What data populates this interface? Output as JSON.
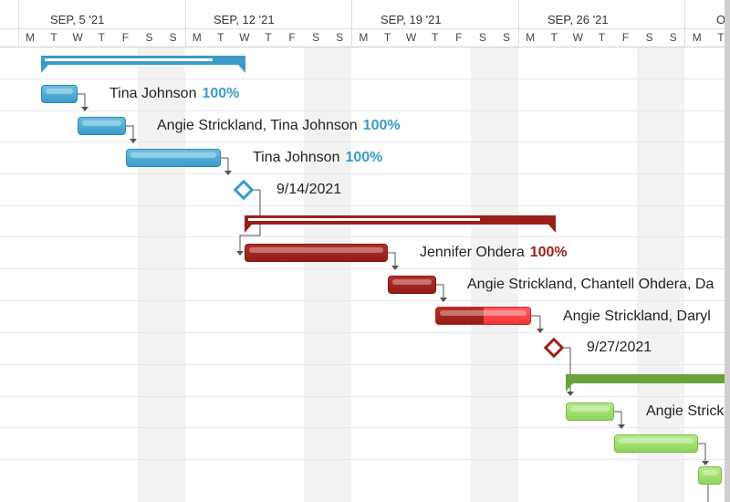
{
  "timeline": {
    "weeks": [
      "SEP, 5 '21",
      "SEP, 12 '21",
      "SEP, 19 '21",
      "SEP, 26 '21",
      "O"
    ],
    "days": [
      "M",
      "T",
      "W",
      "T",
      "F",
      "S",
      "S",
      "M",
      "T",
      "W",
      "T",
      "F",
      "S",
      "S",
      "M",
      "T",
      "W",
      "T",
      "F",
      "S",
      "S",
      "M",
      "T",
      "W",
      "T",
      "F",
      "S",
      "S",
      "M",
      "T"
    ]
  },
  "colors": {
    "blue": "#3a9cc8",
    "red": "#9a1f1a",
    "green": "#6aa33c",
    "blue_pct": "#3a9cc8",
    "red_pct": "#9a1f1a"
  },
  "tasks": [
    {
      "assignee": "Tina Johnson",
      "percent": "100%"
    },
    {
      "assignee": "Angie Strickland, Tina Johnson",
      "percent": "100%"
    },
    {
      "assignee": "Tina Johnson",
      "percent": "100%"
    },
    {
      "milestone_date": "9/14/2021"
    },
    {
      "assignee": "Jennifer Ohdera",
      "percent": "100%"
    },
    {
      "assignee": "Angie Strickland, Chantell Ohdera, Da"
    },
    {
      "assignee": "Angie Strickland, Daryl"
    },
    {
      "milestone_date": "9/27/2021"
    },
    {
      "assignee": "Angie Strick"
    }
  ]
}
